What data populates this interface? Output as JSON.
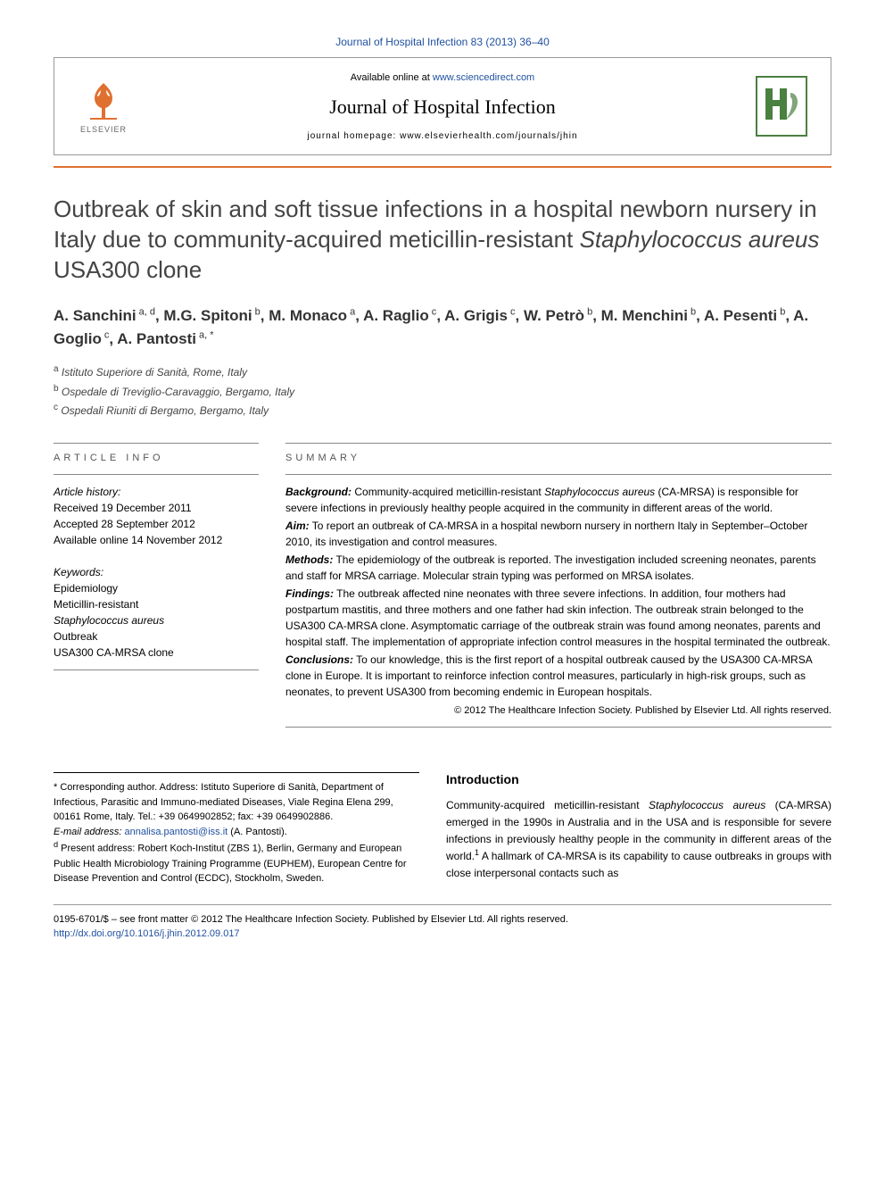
{
  "header": {
    "citation": "Journal of Hospital Infection 83 (2013) 36–40",
    "available_prefix": "Available online at ",
    "available_url": "www.sciencedirect.com",
    "journal_name": "Journal of Hospital Infection",
    "homepage_prefix": "journal homepage: ",
    "homepage_url": "www.elsevierhealth.com/journals/jhin",
    "elsevier_label": "ELSEVIER"
  },
  "title_parts": {
    "p1": "Outbreak of skin and soft tissue infections in a hospital newborn nursery in Italy due to community-acquired meticillin-resistant ",
    "p2": "Staphylococcus aureus",
    "p3": " USA300 clone"
  },
  "authors_html": "A. Sanchini<sup> a, d</sup>, M.G. Spitoni<sup> b</sup>, M. Monaco<sup> a</sup>, A. Raglio<sup> c</sup>, A. Grigis<sup> c</sup>, W. Petrò<sup> b</sup>, M. Menchini<sup> b</sup>, A. Pesenti<sup> b</sup>, A. Goglio<sup> c</sup>, A. Pantosti<sup> a, *</sup>",
  "affiliations": {
    "a": "Istituto Superiore di Sanità, Rome, Italy",
    "b": "Ospedale di Treviglio-Caravaggio, Bergamo, Italy",
    "c": "Ospedali Riuniti di Bergamo, Bergamo, Italy"
  },
  "article_info": {
    "head": "ARTICLE INFO",
    "history_label": "Article history:",
    "received": "Received 19 December 2011",
    "accepted": "Accepted 28 September 2012",
    "online": "Available online 14 November 2012",
    "keywords_label": "Keywords:",
    "keywords": [
      "Epidemiology",
      "Meticillin-resistant",
      "Staphylococcus aureus",
      "Outbreak",
      "USA300 CA-MRSA clone"
    ]
  },
  "summary": {
    "head": "SUMMARY",
    "background_label": "Background:",
    "background": " Community-acquired meticillin-resistant Staphylococcus aureus (CA-MRSA) is responsible for severe infections in previously healthy people acquired in the community in different areas of the world.",
    "aim_label": "Aim:",
    "aim": " To report an outbreak of CA-MRSA in a hospital newborn nursery in northern Italy in September–October 2010, its investigation and control measures.",
    "methods_label": "Methods:",
    "methods": " The epidemiology of the outbreak is reported. The investigation included screening neonates, parents and staff for MRSA carriage. Molecular strain typing was performed on MRSA isolates.",
    "findings_label": "Findings:",
    "findings": " The outbreak affected nine neonates with three severe infections. In addition, four mothers had postpartum mastitis, and three mothers and one father had skin infection. The outbreak strain belonged to the USA300 CA-MRSA clone. Asymptomatic carriage of the outbreak strain was found among neonates, parents and hospital staff. The implementation of appropriate infection control measures in the hospital terminated the outbreak.",
    "conclusions_label": "Conclusions:",
    "conclusions": " To our knowledge, this is the first report of a hospital outbreak caused by the USA300 CA-MRSA clone in Europe. It is important to reinforce infection control measures, particularly in high-risk groups, such as neonates, to prevent USA300 from becoming endemic in European hospitals.",
    "copyright": "© 2012 The Healthcare Infection Society. Published by Elsevier Ltd. All rights reserved."
  },
  "footnotes": {
    "corresponding": "* Corresponding author. Address: Istituto Superiore di Sanità, Department of Infectious, Parasitic and Immuno-mediated Diseases, Viale Regina Elena 299, 00161 Rome, Italy. Tel.: +39 0649902852; fax: +39 0649902886.",
    "email_label": "E-mail address: ",
    "email": "annalisa.pantosti@iss.it",
    "email_name": " (A. Pantosti).",
    "present": "Present address: Robert Koch-Institut (ZBS 1), Berlin, Germany and European Public Health Microbiology Training Programme (EUPHEM), European Centre for Disease Prevention and Control (ECDC), Stockholm, Sweden."
  },
  "intro": {
    "head": "Introduction",
    "body_p1": "Community-acquired meticillin-resistant ",
    "body_em": "Staphylococcus aureus",
    "body_p2": " (CA-MRSA) emerged in the 1990s in Australia and in the USA and is responsible for severe infections in previously healthy people in the community in different areas of the world.",
    "body_p3": " A hallmark of CA-MRSA is its capability to cause outbreaks in groups with close interpersonal contacts such as"
  },
  "footer": {
    "line1": "0195-6701/$ – see front matter © 2012 The Healthcare Infection Society. Published by Elsevier Ltd. All rights reserved.",
    "doi": "http://dx.doi.org/10.1016/j.jhin.2012.09.017"
  },
  "colors": {
    "accent_orange": "#e07030",
    "link_blue": "#2050a0",
    "logo_green": "#4a8040"
  }
}
